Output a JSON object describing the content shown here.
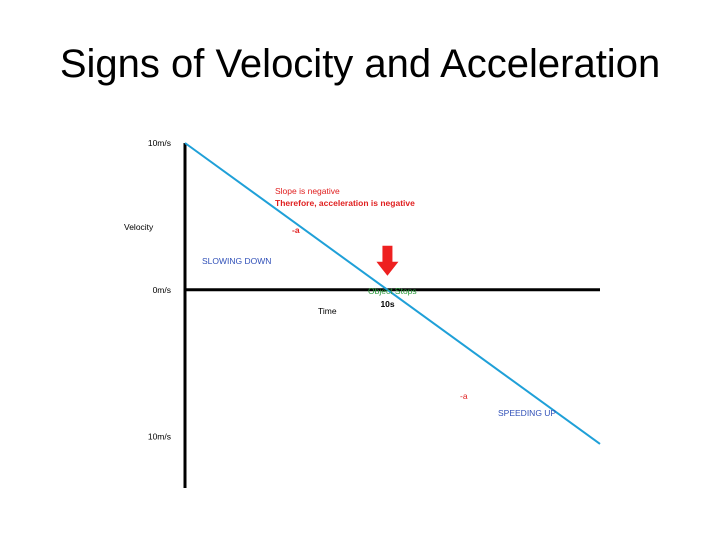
{
  "title": "Signs of Velocity and Acceleration",
  "colors": {
    "line": "#1fa0d8",
    "axis": "#000000",
    "red": "#e02020",
    "blue": "#3050b8",
    "green": "#2a9a3c",
    "arrow": "#ee2020"
  },
  "chart_data": {
    "type": "line",
    "xlabel": "Time",
    "ylabel": "Velocity",
    "y_ticks": [
      "10m/s",
      "0m/s",
      "10m/s"
    ],
    "y_values": [
      10,
      0,
      -10
    ],
    "x_tick": "10s",
    "x_tick_value": 10,
    "ylim": [
      -13.5,
      10
    ],
    "xlim": [
      0,
      20.5
    ],
    "grid": false,
    "series": [
      {
        "x": [
          0,
          20.5
        ],
        "y": [
          10,
          -10.5
        ]
      }
    ],
    "annotations": {
      "slope_line1": "Slope is negative",
      "slope_line2": "Therefore, acceleration is negative",
      "neg_a": "-a",
      "slowing": "SLOWING DOWN",
      "stops": "Object Stops",
      "a_lower": "-a",
      "speeding": "SPEEDING UP"
    }
  }
}
